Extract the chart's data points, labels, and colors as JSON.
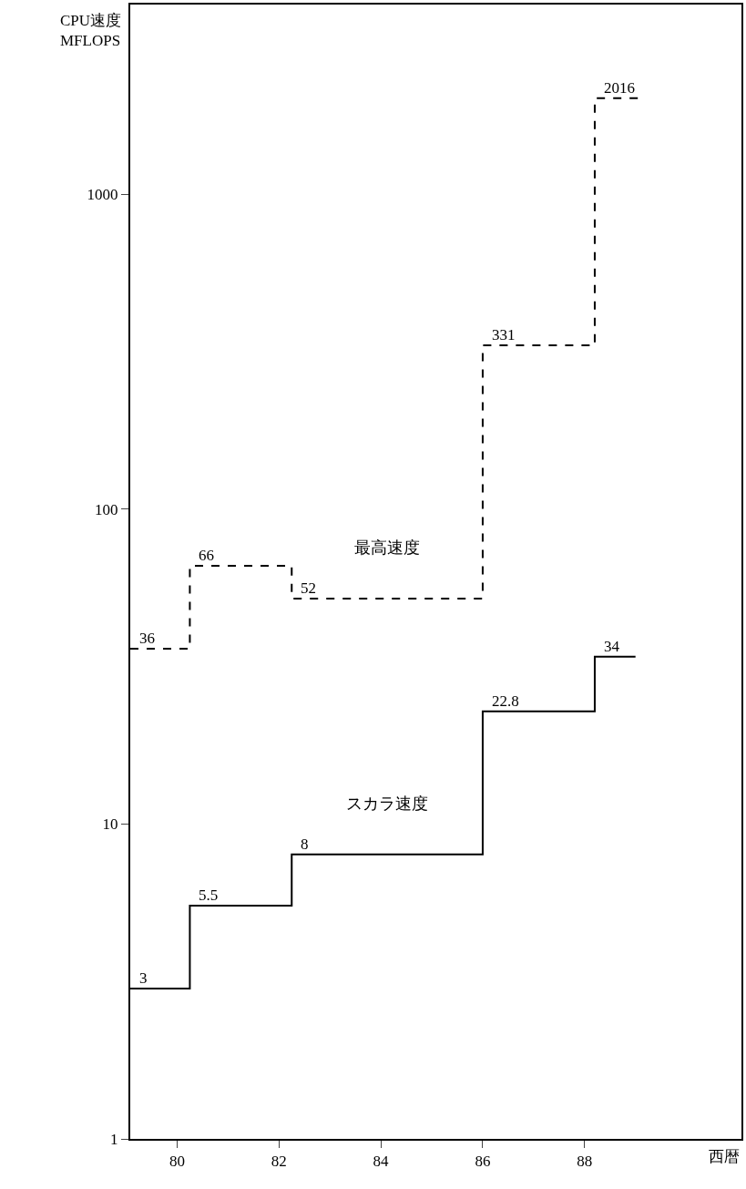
{
  "chart_data": {
    "type": "step",
    "ylabel": "CPU速度\nMFLOPS",
    "xlabel": "西暦",
    "log": "y",
    "xlim": [
      79.08,
      91.08
    ],
    "xticks": [
      80,
      82,
      84,
      86,
      88
    ],
    "ylim": [
      1,
      4000
    ],
    "yticks": [
      1,
      10,
      100,
      1000
    ],
    "legend": false,
    "series": [
      {
        "name": "最高速度",
        "color": "#000000",
        "line_style": "dashed",
        "x": [
          79.08,
          80.25,
          82.25,
          86,
          88.2,
          89.1
        ],
        "values": [
          36,
          66,
          52,
          331,
          2016,
          2016
        ],
        "value_labels": [
          "36",
          "66",
          "52",
          "331",
          "2016",
          null
        ]
      },
      {
        "name": "スカラ速度",
        "color": "#000000",
        "line_style": "solid",
        "x": [
          79.08,
          80.25,
          82.25,
          86,
          88.2,
          89
        ],
        "values": [
          3,
          5.5,
          8,
          22.8,
          34,
          34
        ],
        "value_labels": [
          "3",
          "5.5",
          "8",
          "22.8",
          "34",
          null
        ]
      }
    ]
  }
}
